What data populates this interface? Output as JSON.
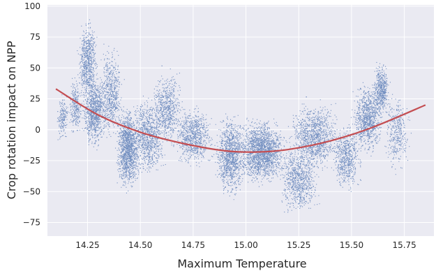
{
  "chart_data": {
    "type": "scatter",
    "title": "",
    "xlabel": "Maximum Temperature",
    "ylabel": "Crop rotation impact on NPP",
    "xlim": [
      14.06,
      15.89
    ],
    "ylim": [
      -86,
      101
    ],
    "xticks": [
      14.25,
      14.5,
      14.75,
      15.0,
      15.25,
      15.5,
      15.75
    ],
    "xtick_labels": [
      "14.25",
      "14.50",
      "14.75",
      "15.00",
      "15.25",
      "15.50",
      "15.75"
    ],
    "yticks": [
      -75,
      -50,
      -25,
      0,
      25,
      50,
      75,
      100
    ],
    "ytick_labels": [
      "−75",
      "−50",
      "−25",
      "0",
      "25",
      "50",
      "75",
      "100"
    ],
    "grid": true,
    "background": "#eaeaf2",
    "series": [
      {
        "kind": "scatter",
        "color": "#4c72b0",
        "clusters": [
          {
            "x": [
              14.1,
              14.16
            ],
            "y": [
              -10,
              30
            ],
            "n": 180
          },
          {
            "x": [
              14.16,
              14.22
            ],
            "y": [
              -5,
              45
            ],
            "n": 260
          },
          {
            "x": [
              14.2,
              14.3
            ],
            "y": [
              20,
              90
            ],
            "n": 700
          },
          {
            "x": [
              14.22,
              14.34
            ],
            "y": [
              -15,
              45
            ],
            "n": 900
          },
          {
            "x": [
              14.3,
              14.42
            ],
            "y": [
              -10,
              70
            ],
            "n": 600
          },
          {
            "x": [
              14.38,
              14.5
            ],
            "y": [
              -50,
              20
            ],
            "n": 1300
          },
          {
            "x": [
              14.45,
              14.62
            ],
            "y": [
              -40,
              30
            ],
            "n": 900
          },
          {
            "x": [
              14.55,
              14.7
            ],
            "y": [
              -15,
              50
            ],
            "n": 650
          },
          {
            "x": [
              14.65,
              14.85
            ],
            "y": [
              -30,
              20
            ],
            "n": 800
          },
          {
            "x": [
              14.85,
              15.0
            ],
            "y": [
              -55,
              15
            ],
            "n": 1100
          },
          {
            "x": [
              14.95,
              15.2
            ],
            "y": [
              -45,
              10
            ],
            "n": 1800
          },
          {
            "x": [
              15.15,
              15.35
            ],
            "y": [
              -70,
              -10
            ],
            "n": 800
          },
          {
            "x": [
              15.2,
              15.45
            ],
            "y": [
              -35,
              25
            ],
            "n": 1100
          },
          {
            "x": [
              15.4,
              15.55
            ],
            "y": [
              -50,
              5
            ],
            "n": 600
          },
          {
            "x": [
              15.5,
              15.65
            ],
            "y": [
              -20,
              40
            ],
            "n": 900
          },
          {
            "x": [
              15.6,
              15.68
            ],
            "y": [
              10,
              55
            ],
            "n": 500
          },
          {
            "x": [
              15.65,
              15.78
            ],
            "y": [
              -35,
              30
            ],
            "n": 350
          }
        ]
      },
      {
        "kind": "quadratic-fit",
        "color": "#c44e52",
        "x": [
          14.1,
          14.3,
          14.5,
          14.7,
          14.9,
          15.05,
          15.2,
          15.4,
          15.6,
          15.85
        ],
        "y": [
          33,
          12,
          -2,
          -11,
          -17,
          -18,
          -16,
          -9,
          2,
          20
        ]
      }
    ]
  }
}
